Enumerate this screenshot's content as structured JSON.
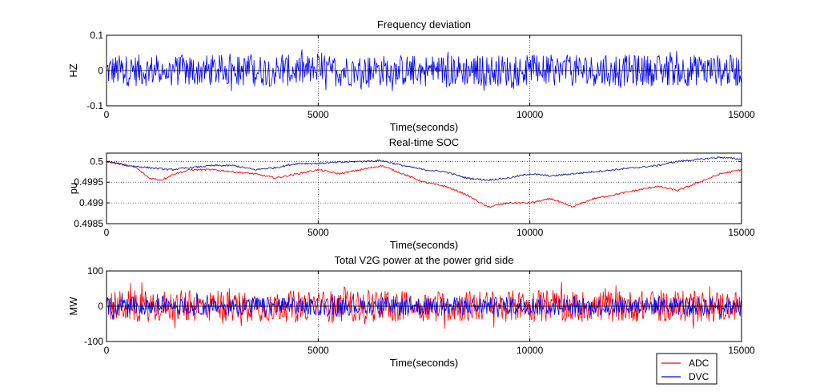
{
  "chart_data": [
    {
      "type": "line",
      "title": "Frequency deviation",
      "xlabel": "Time(seconds)",
      "ylabel": "HZ",
      "xlim": [
        0,
        15000
      ],
      "ylim": [
        -0.1,
        0.1
      ],
      "xticks": [
        0,
        5000,
        10000,
        15000
      ],
      "xtick_labels": [
        "0",
        "5000",
        "10000",
        "15000"
      ],
      "yticks": [
        -0.1,
        0,
        0.1
      ],
      "ytick_labels": [
        "-0.1",
        "0",
        "0.1"
      ],
      "grid": "dotted",
      "series": [
        {
          "color": "#0000ff",
          "kind": "noise",
          "x": [
            0,
            15000
          ],
          "y": [
            0,
            0
          ],
          "amplitude": 0.06
        }
      ]
    },
    {
      "type": "line",
      "title": "Real-time SOC",
      "xlabel": "Time(seconds)",
      "ylabel": "pu",
      "xlim": [
        0,
        15000
      ],
      "ylim": [
        0.4985,
        0.5002
      ],
      "xticks": [
        0,
        5000,
        10000,
        15000
      ],
      "xtick_labels": [
        "0",
        "5000",
        "10000",
        "15000"
      ],
      "yticks": [
        0.4985,
        0.499,
        0.4995,
        0.5
      ],
      "ytick_labels": [
        "0.4985",
        "0.499",
        "0.4995",
        "0.5"
      ],
      "grid": "dotted",
      "series": [
        {
          "name": "ADC",
          "color": "#ff0000",
          "kind": "walk",
          "x": [
            0,
            300,
            700,
            1000,
            1300,
            1600,
            2000,
            2500,
            3000,
            3500,
            4000,
            4500,
            5000,
            5500,
            6000,
            6500,
            7000,
            7500,
            8000,
            8500,
            9000,
            9500,
            10000,
            10500,
            11000,
            11500,
            12000,
            12500,
            13000,
            13500,
            14000,
            14500,
            15000
          ],
          "y": [
            0.5,
            0.49995,
            0.49985,
            0.4996,
            0.49955,
            0.4997,
            0.4998,
            0.4998,
            0.49975,
            0.4997,
            0.4996,
            0.4997,
            0.4998,
            0.4997,
            0.4998,
            0.4999,
            0.4997,
            0.4995,
            0.4994,
            0.4992,
            0.4989,
            0.499,
            0.499,
            0.4991,
            0.4989,
            0.4991,
            0.4992,
            0.4993,
            0.4994,
            0.4993,
            0.4995,
            0.4997,
            0.4998
          ]
        },
        {
          "name": "DVC",
          "color": "#1a1a8c",
          "kind": "walk",
          "x": [
            0,
            500,
            1000,
            1500,
            2000,
            2500,
            3000,
            3500,
            4000,
            4500,
            5000,
            5500,
            6000,
            6500,
            7000,
            7500,
            8000,
            8500,
            9000,
            9500,
            10000,
            10500,
            11000,
            11500,
            12000,
            12500,
            13000,
            13500,
            14000,
            14500,
            15000
          ],
          "y": [
            0.5,
            0.4999,
            0.49985,
            0.4998,
            0.49985,
            0.4999,
            0.4999,
            0.4998,
            0.49985,
            0.49995,
            0.49995,
            0.49998,
            0.5,
            0.50002,
            0.4999,
            0.4998,
            0.49975,
            0.4996,
            0.49955,
            0.4996,
            0.4997,
            0.49965,
            0.4997,
            0.49975,
            0.4998,
            0.49985,
            0.4999,
            0.5,
            0.50005,
            0.5001,
            0.50005
          ]
        }
      ]
    },
    {
      "type": "line",
      "title": "Total V2G power at the power grid side",
      "xlabel": "Time(seconds)",
      "ylabel": "MW",
      "xlim": [
        0,
        15000
      ],
      "ylim": [
        -100,
        100
      ],
      "xticks": [
        0,
        5000,
        10000,
        15000
      ],
      "xtick_labels": [
        "0",
        "5000",
        "10000",
        "15000"
      ],
      "yticks": [
        -100,
        0,
        100
      ],
      "ytick_labels": [
        "-100",
        "0",
        "100"
      ],
      "grid": "dotted",
      "legend_placement": "bottom-right, outside",
      "series": [
        {
          "name": "ADC",
          "color": "#ff0000",
          "kind": "noise",
          "x": [
            0,
            15000
          ],
          "y": [
            0,
            0
          ],
          "amplitude": 60
        },
        {
          "name": "DVC",
          "color": "#0000ff",
          "kind": "noise",
          "x": [
            0,
            15000
          ],
          "y": [
            0,
            0
          ],
          "amplitude": 35
        }
      ]
    }
  ]
}
